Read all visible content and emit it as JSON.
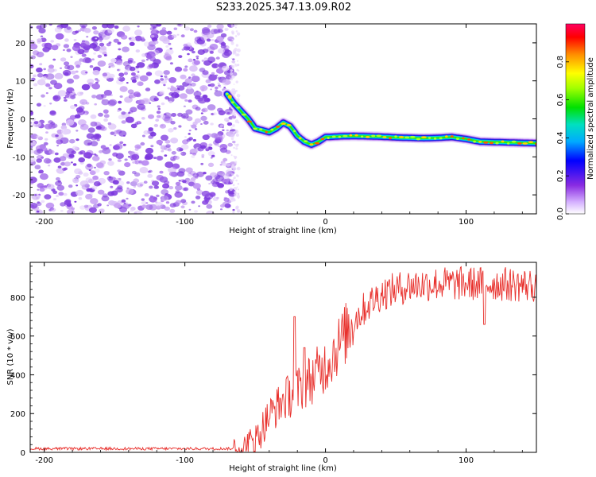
{
  "title": "S233.2025.347.13.09.R02",
  "chart_data": [
    {
      "type": "heatmap",
      "xlabel": "Height of straight line (km)",
      "ylabel": "Frequency (Hz)",
      "xlim": [
        -210,
        150
      ],
      "ylim": [
        -25,
        25
      ],
      "xticks": [
        -200,
        -100,
        0,
        100
      ],
      "yticks": [
        -20,
        -10,
        0,
        10,
        20
      ],
      "noise_region_x": [
        -210,
        -65
      ],
      "ridge": {
        "x": [
          -70,
          -65,
          -60,
          -55,
          -50,
          -45,
          -40,
          -35,
          -30,
          -25,
          -20,
          -15,
          -10,
          -5,
          0,
          10,
          20,
          30,
          40,
          50,
          60,
          70,
          80,
          90,
          100,
          110,
          120,
          130,
          140,
          150
        ],
        "y": [
          6.5,
          4,
          2,
          0,
          -2.5,
          -3,
          -3.5,
          -2.5,
          -1,
          -2,
          -4.5,
          -6,
          -6.8,
          -6,
          -4.8,
          -4.6,
          -4.5,
          -4.6,
          -4.7,
          -4.9,
          -5,
          -5.1,
          -5,
          -4.8,
          -5.3,
          -6,
          -6.1,
          -6.2,
          -6.3,
          -6.4
        ]
      },
      "colorbar": {
        "label": "Normalized spectral amplitude",
        "range": [
          0,
          1
        ],
        "ticks": [
          "0.0",
          "0.2",
          "0.4",
          "0.6",
          "0.8"
        ]
      }
    },
    {
      "type": "line",
      "xlabel": "Height of straight line (km)",
      "ylabel": "SNR (10 * v/v)",
      "xlim": [
        -210,
        150
      ],
      "ylim": [
        0,
        980
      ],
      "xticks": [
        -200,
        -100,
        0,
        100
      ],
      "yticks": [
        0,
        200,
        400,
        600,
        800
      ],
      "color": "#e8302c",
      "series": [
        {
          "name": "SNR",
          "trend_x": [
            -210,
            -70,
            -60,
            -50,
            -40,
            -30,
            -20,
            -10,
            0,
            10,
            20,
            30,
            40,
            50,
            60,
            80,
            100,
            120,
            150
          ],
          "trend_y": [
            15,
            15,
            20,
            60,
            190,
            270,
            320,
            380,
            450,
            560,
            680,
            760,
            820,
            840,
            860,
            870,
            870,
            870,
            860
          ]
        }
      ],
      "annotations": [
        {
          "x": -22,
          "y": 700
        },
        {
          "x": -15,
          "y": 540
        },
        {
          "x": 113,
          "y": 660
        }
      ]
    }
  ]
}
